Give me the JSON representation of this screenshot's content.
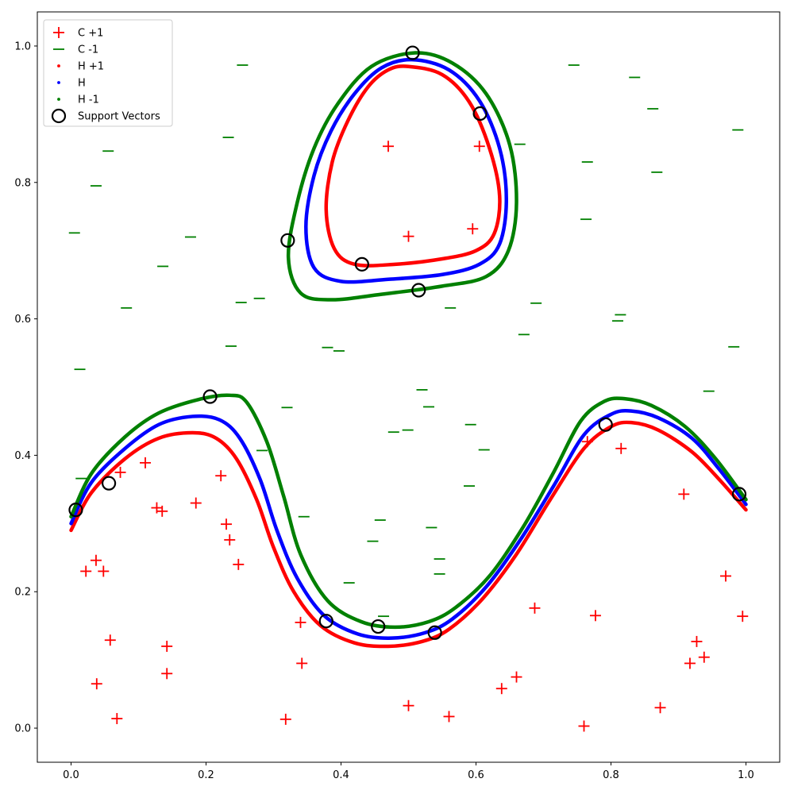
{
  "chart_data": {
    "type": "scatter",
    "title": "",
    "xlabel": "",
    "ylabel": "",
    "xlim": [
      -0.05,
      1.05
    ],
    "ylim": [
      -0.05,
      1.05
    ],
    "x_ticks": [
      0.0,
      0.2,
      0.4,
      0.6,
      0.8,
      1.0
    ],
    "y_ticks": [
      0.0,
      0.2,
      0.4,
      0.6,
      0.8,
      1.0
    ],
    "x_tick_labels": [
      "0.0",
      "0.2",
      "0.4",
      "0.6",
      "0.8",
      "1.0"
    ],
    "y_tick_labels": [
      "0.0",
      "0.2",
      "0.4",
      "0.6",
      "0.8",
      "1.0"
    ],
    "grid": false,
    "legend": {
      "position": "top-left",
      "entries": [
        {
          "label": "C +1",
          "marker": "plus",
          "color": "#ff0000"
        },
        {
          "label": "C -1",
          "marker": "dash",
          "color": "#008000"
        },
        {
          "label": "H +1",
          "marker": "dot",
          "color": "#ff0000"
        },
        {
          "label": "H",
          "marker": "dot",
          "color": "#0000ff"
        },
        {
          "label": "H -1",
          "marker": "dot",
          "color": "#008000"
        },
        {
          "label": "Support Vectors",
          "marker": "ring",
          "color": "#000000"
        }
      ]
    },
    "series": [
      {
        "name": "C +1",
        "kind": "points",
        "marker": "plus",
        "color": "#ff0000",
        "points": [
          [
            0.47,
            0.853
          ],
          [
            0.605,
            0.853
          ],
          [
            0.5,
            0.721
          ],
          [
            0.595,
            0.732
          ],
          [
            0.073,
            0.375
          ],
          [
            0.11,
            0.389
          ],
          [
            0.127,
            0.323
          ],
          [
            0.135,
            0.318
          ],
          [
            0.185,
            0.33
          ],
          [
            0.222,
            0.37
          ],
          [
            0.23,
            0.299
          ],
          [
            0.235,
            0.276
          ],
          [
            0.248,
            0.24
          ],
          [
            0.037,
            0.246
          ],
          [
            0.022,
            0.23
          ],
          [
            0.048,
            0.23
          ],
          [
            0.058,
            0.129
          ],
          [
            0.142,
            0.12
          ],
          [
            0.142,
            0.08
          ],
          [
            0.038,
            0.065
          ],
          [
            0.068,
            0.014
          ],
          [
            0.34,
            0.155
          ],
          [
            0.342,
            0.095
          ],
          [
            0.318,
            0.013
          ],
          [
            0.5,
            0.033
          ],
          [
            0.56,
            0.017
          ],
          [
            0.638,
            0.058
          ],
          [
            0.66,
            0.075
          ],
          [
            0.687,
            0.176
          ],
          [
            0.765,
            0.42
          ],
          [
            0.815,
            0.41
          ],
          [
            0.777,
            0.165
          ],
          [
            0.76,
            0.003
          ],
          [
            0.873,
            0.03
          ],
          [
            0.908,
            0.343
          ],
          [
            0.97,
            0.223
          ],
          [
            0.995,
            0.164
          ],
          [
            0.927,
            0.127
          ],
          [
            0.917,
            0.095
          ],
          [
            0.938,
            0.104
          ]
        ]
      },
      {
        "name": "C -1",
        "kind": "points",
        "marker": "dash",
        "color": "#008000",
        "points": [
          [
            0.254,
            0.972
          ],
          [
            0.745,
            0.972
          ],
          [
            0.835,
            0.954
          ],
          [
            0.862,
            0.908
          ],
          [
            0.988,
            0.877
          ],
          [
            0.233,
            0.866
          ],
          [
            0.665,
            0.856
          ],
          [
            0.055,
            0.846
          ],
          [
            0.765,
            0.83
          ],
          [
            0.868,
            0.815
          ],
          [
            0.037,
            0.795
          ],
          [
            0.763,
            0.746
          ],
          [
            0.005,
            0.726
          ],
          [
            0.177,
            0.72
          ],
          [
            0.136,
            0.677
          ],
          [
            0.252,
            0.624
          ],
          [
            0.279,
            0.63
          ],
          [
            0.082,
            0.616
          ],
          [
            0.562,
            0.616
          ],
          [
            0.689,
            0.623
          ],
          [
            0.814,
            0.606
          ],
          [
            0.81,
            0.597
          ],
          [
            0.671,
            0.577
          ],
          [
            0.237,
            0.56
          ],
          [
            0.38,
            0.558
          ],
          [
            0.397,
            0.553
          ],
          [
            0.982,
            0.559
          ],
          [
            0.013,
            0.526
          ],
          [
            0.52,
            0.496
          ],
          [
            0.945,
            0.494
          ],
          [
            0.53,
            0.471
          ],
          [
            0.32,
            0.47
          ],
          [
            0.592,
            0.445
          ],
          [
            0.478,
            0.434
          ],
          [
            0.499,
            0.437
          ],
          [
            0.612,
            0.408
          ],
          [
            0.283,
            0.407
          ],
          [
            0.015,
            0.366
          ],
          [
            0.59,
            0.355
          ],
          [
            0.345,
            0.31
          ],
          [
            0.458,
            0.305
          ],
          [
            0.534,
            0.294
          ],
          [
            0.447,
            0.274
          ],
          [
            0.546,
            0.248
          ],
          [
            0.546,
            0.226
          ],
          [
            0.412,
            0.213
          ],
          [
            0.463,
            0.164
          ]
        ]
      },
      {
        "name": "Support Vectors",
        "kind": "points",
        "marker": "ring",
        "color": "#000000",
        "points": [
          [
            0.506,
            0.99
          ],
          [
            0.606,
            0.901
          ],
          [
            0.321,
            0.715
          ],
          [
            0.431,
            0.68
          ],
          [
            0.515,
            0.642
          ],
          [
            0.206,
            0.486
          ],
          [
            0.007,
            0.32
          ],
          [
            0.056,
            0.359
          ],
          [
            0.378,
            0.157
          ],
          [
            0.455,
            0.149
          ],
          [
            0.539,
            0.14
          ],
          [
            0.792,
            0.445
          ],
          [
            0.99,
            0.343
          ]
        ]
      },
      {
        "name": "H +1",
        "kind": "curves",
        "color": "#ff0000",
        "curves": [
          [
            [
              0.0,
              0.29
            ],
            [
              0.03,
              0.345
            ],
            [
              0.08,
              0.395
            ],
            [
              0.13,
              0.425
            ],
            [
              0.18,
              0.433
            ],
            [
              0.215,
              0.425
            ],
            [
              0.245,
              0.395
            ],
            [
              0.275,
              0.335
            ],
            [
              0.3,
              0.265
            ],
            [
              0.33,
              0.2
            ],
            [
              0.37,
              0.15
            ],
            [
              0.42,
              0.125
            ],
            [
              0.47,
              0.12
            ],
            [
              0.52,
              0.127
            ],
            [
              0.56,
              0.145
            ],
            [
              0.61,
              0.19
            ],
            [
              0.66,
              0.255
            ],
            [
              0.71,
              0.335
            ],
            [
              0.76,
              0.41
            ],
            [
              0.8,
              0.442
            ],
            [
              0.83,
              0.448
            ],
            [
              0.87,
              0.437
            ],
            [
              0.92,
              0.405
            ],
            [
              0.96,
              0.365
            ],
            [
              1.0,
              0.32
            ]
          ],
          [
            [
              0.5,
              0.97
            ],
            [
              0.55,
              0.958
            ],
            [
              0.59,
              0.918
            ],
            [
              0.62,
              0.85
            ],
            [
              0.635,
              0.78
            ],
            [
              0.627,
              0.725
            ],
            [
              0.6,
              0.7
            ],
            [
              0.55,
              0.688
            ],
            [
              0.48,
              0.68
            ],
            [
              0.42,
              0.68
            ],
            [
              0.39,
              0.703
            ],
            [
              0.378,
              0.76
            ],
            [
              0.387,
              0.83
            ],
            [
              0.41,
              0.89
            ],
            [
              0.44,
              0.94
            ],
            [
              0.47,
              0.965
            ],
            [
              0.5,
              0.97
            ]
          ]
        ]
      },
      {
        "name": "H",
        "kind": "curves",
        "color": "#0000ff",
        "curves": [
          [
            [
              0.0,
              0.3
            ],
            [
              0.03,
              0.36
            ],
            [
              0.08,
              0.41
            ],
            [
              0.13,
              0.445
            ],
            [
              0.18,
              0.457
            ],
            [
              0.22,
              0.452
            ],
            [
              0.25,
              0.425
            ],
            [
              0.28,
              0.365
            ],
            [
              0.305,
              0.29
            ],
            [
              0.335,
              0.22
            ],
            [
              0.375,
              0.165
            ],
            [
              0.425,
              0.138
            ],
            [
              0.475,
              0.132
            ],
            [
              0.525,
              0.14
            ],
            [
              0.565,
              0.16
            ],
            [
              0.615,
              0.207
            ],
            [
              0.665,
              0.275
            ],
            [
              0.715,
              0.355
            ],
            [
              0.76,
              0.43
            ],
            [
              0.8,
              0.46
            ],
            [
              0.83,
              0.465
            ],
            [
              0.87,
              0.455
            ],
            [
              0.92,
              0.425
            ],
            [
              0.96,
              0.38
            ],
            [
              1.0,
              0.328
            ]
          ],
          [
            [
              0.505,
              0.98
            ],
            [
              0.56,
              0.965
            ],
            [
              0.605,
              0.92
            ],
            [
              0.635,
              0.85
            ],
            [
              0.645,
              0.775
            ],
            [
              0.635,
              0.71
            ],
            [
              0.605,
              0.68
            ],
            [
              0.55,
              0.665
            ],
            [
              0.47,
              0.658
            ],
            [
              0.4,
              0.655
            ],
            [
              0.36,
              0.675
            ],
            [
              0.348,
              0.735
            ],
            [
              0.36,
              0.81
            ],
            [
              0.385,
              0.875
            ],
            [
              0.42,
              0.93
            ],
            [
              0.46,
              0.968
            ],
            [
              0.505,
              0.98
            ]
          ]
        ]
      },
      {
        "name": "H -1",
        "kind": "curves",
        "color": "#008000",
        "curves": [
          [
            [
              0.0,
              0.31
            ],
            [
              0.03,
              0.373
            ],
            [
              0.08,
              0.427
            ],
            [
              0.13,
              0.462
            ],
            [
              0.19,
              0.482
            ],
            [
              0.235,
              0.488
            ],
            [
              0.26,
              0.478
            ],
            [
              0.29,
              0.42
            ],
            [
              0.315,
              0.34
            ],
            [
              0.34,
              0.255
            ],
            [
              0.38,
              0.187
            ],
            [
              0.43,
              0.156
            ],
            [
              0.48,
              0.148
            ],
            [
              0.53,
              0.156
            ],
            [
              0.57,
              0.177
            ],
            [
              0.62,
              0.223
            ],
            [
              0.67,
              0.295
            ],
            [
              0.715,
              0.375
            ],
            [
              0.755,
              0.45
            ],
            [
              0.79,
              0.479
            ],
            [
              0.82,
              0.483
            ],
            [
              0.86,
              0.473
            ],
            [
              0.91,
              0.442
            ],
            [
              0.955,
              0.395
            ],
            [
              1.0,
              0.335
            ]
          ],
          [
            [
              0.51,
              0.99
            ],
            [
              0.565,
              0.975
            ],
            [
              0.615,
              0.93
            ],
            [
              0.65,
              0.855
            ],
            [
              0.66,
              0.77
            ],
            [
              0.648,
              0.7
            ],
            [
              0.615,
              0.662
            ],
            [
              0.55,
              0.648
            ],
            [
              0.46,
              0.636
            ],
            [
              0.385,
              0.628
            ],
            [
              0.34,
              0.638
            ],
            [
              0.322,
              0.69
            ],
            [
              0.335,
              0.77
            ],
            [
              0.36,
              0.85
            ],
            [
              0.395,
              0.915
            ],
            [
              0.445,
              0.97
            ],
            [
              0.51,
              0.99
            ]
          ]
        ]
      }
    ]
  }
}
